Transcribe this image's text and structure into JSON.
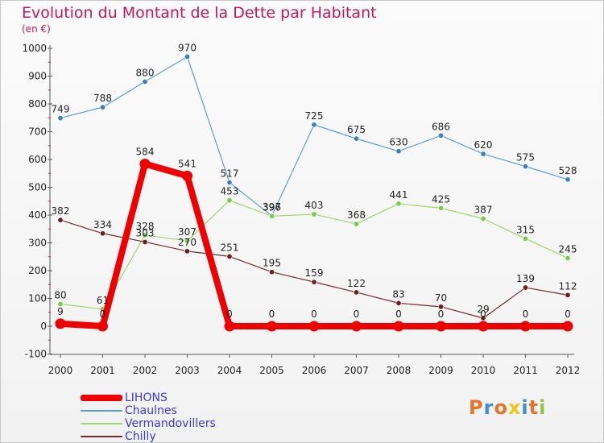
{
  "title": "Evolution du Montant de la Dette par Habitant",
  "unit": "(en €)",
  "logo": "Proxiti",
  "chart_data": {
    "type": "line",
    "title": "Evolution du Montant de la Dette par Habitant",
    "ylabel": "(en €)",
    "x": [
      "2000",
      "2001",
      "2002",
      "2003",
      "2004",
      "2005",
      "2006",
      "2007",
      "2008",
      "2009",
      "2010",
      "2011",
      "2012"
    ],
    "ylim": [
      -100,
      1000
    ],
    "yticks": [
      -100,
      0,
      100,
      200,
      300,
      400,
      500,
      600,
      700,
      800,
      900,
      1000
    ],
    "grid": false,
    "legend": "bottom-left",
    "series": [
      {
        "name": "Chaulnes",
        "color": "#5a9fd4",
        "dot": "#3a7fc0",
        "width": 1.2,
        "radius": 3.2,
        "values": [
          749,
          788,
          880,
          970,
          517,
          397,
          725,
          675,
          630,
          686,
          620,
          575,
          528
        ],
        "labels": [
          "749",
          "788",
          "880",
          "970",
          "517",
          "397",
          "725",
          "675",
          "630",
          "686",
          "620",
          "575",
          "528"
        ]
      },
      {
        "name": "Vermandovillers",
        "color": "#9ed86b",
        "dot": "#7cc94c",
        "width": 1.2,
        "radius": 3.2,
        "values": [
          80,
          61,
          328,
          307,
          453,
          396,
          403,
          368,
          441,
          425,
          387,
          315,
          245
        ],
        "labels": [
          "80",
          "61",
          "328",
          "307",
          "453",
          "396",
          "403",
          "368",
          "441",
          "425",
          "387",
          "315",
          "245"
        ]
      },
      {
        "name": "Chilly",
        "color": "#7a2a2a",
        "dot": "#6a1f1f",
        "width": 1.2,
        "radius": 3.2,
        "values": [
          382,
          334,
          303,
          270,
          251,
          195,
          159,
          122,
          83,
          70,
          29,
          139,
          112
        ],
        "labels": [
          "382",
          "334",
          "303",
          "270",
          "251",
          "195",
          "159",
          "122",
          "83",
          "70",
          "29",
          "139",
          "112"
        ]
      },
      {
        "name": "LIHONS",
        "color": "#ee0000",
        "dot": "#ee0000",
        "width": 8,
        "radius": 6.5,
        "values": [
          9,
          0,
          584,
          541,
          0,
          0,
          0,
          0,
          0,
          0,
          0,
          0,
          0
        ],
        "labels": [
          "9",
          "0",
          "584",
          "541",
          "0",
          "0",
          "0",
          "0",
          "0",
          "0",
          "0",
          "0",
          "0"
        ]
      }
    ]
  },
  "legend": [
    {
      "name": "LIHONS",
      "color": "#ee0000",
      "thickness": 8
    },
    {
      "name": "Chaulnes",
      "color": "#5a9fd4",
      "thickness": 2
    },
    {
      "name": "Vermandovillers",
      "color": "#9ed86b",
      "thickness": 2
    },
    {
      "name": "Chilly",
      "color": "#7a2a2a",
      "thickness": 2
    }
  ],
  "logo_colors": [
    "#e8732a",
    "#3a8fd6",
    "#e8732a",
    "#f2c318",
    "#3a8fd6",
    "#e8732a",
    "#8cc63f"
  ]
}
